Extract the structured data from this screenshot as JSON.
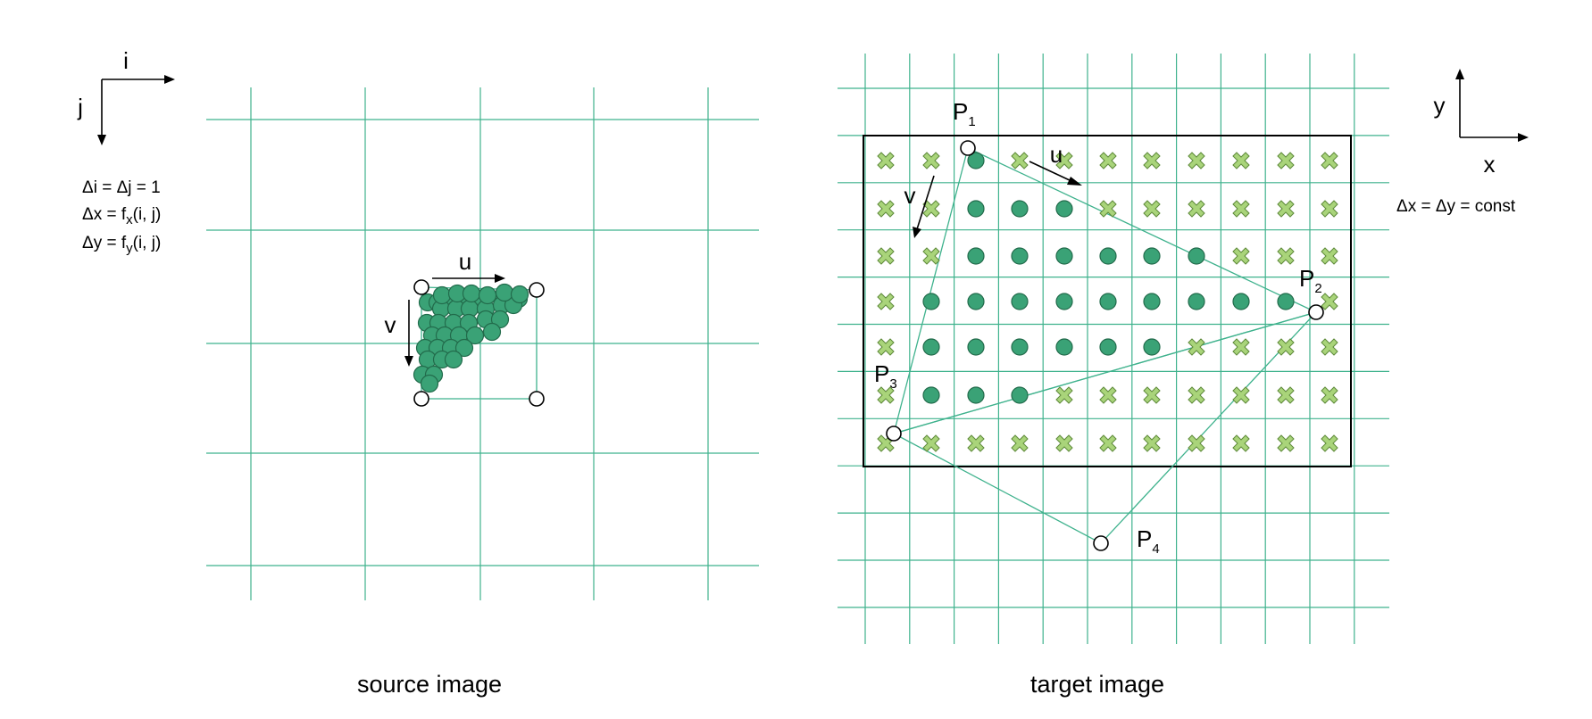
{
  "colors": {
    "grid": "#3fb28d",
    "dot_fill": "#3aa276",
    "dot_stroke": "#226b4b",
    "cross_fill": "#a9d47a",
    "cross_stroke": "#5e8a3a",
    "frame": "#000000"
  },
  "source": {
    "axis_i": "i",
    "axis_j": "j",
    "eq1": "Δi = Δj = 1",
    "eq2_pre": "Δx = f",
    "eq2_sub": "x",
    "eq2_post": "(i, j)",
    "eq3_pre": "Δy = f",
    "eq3_sub": "y",
    "eq3_post": "(i, j)",
    "u_label": "u",
    "v_label": "v",
    "caption": "source image"
  },
  "target": {
    "axis_x": "x",
    "axis_y": "y",
    "eq": "Δx = Δy = const",
    "u_label": "u",
    "v_label": "v",
    "p_letter": "P",
    "p1_sub": "1",
    "p2_sub": "2",
    "p3_sub": "3",
    "p4_sub": "4",
    "caption": "target image"
  },
  "legend": {
    "inside_marker": "filled-circle",
    "outside_marker": "cross-mark",
    "corner_marker": "hollow-circle"
  }
}
